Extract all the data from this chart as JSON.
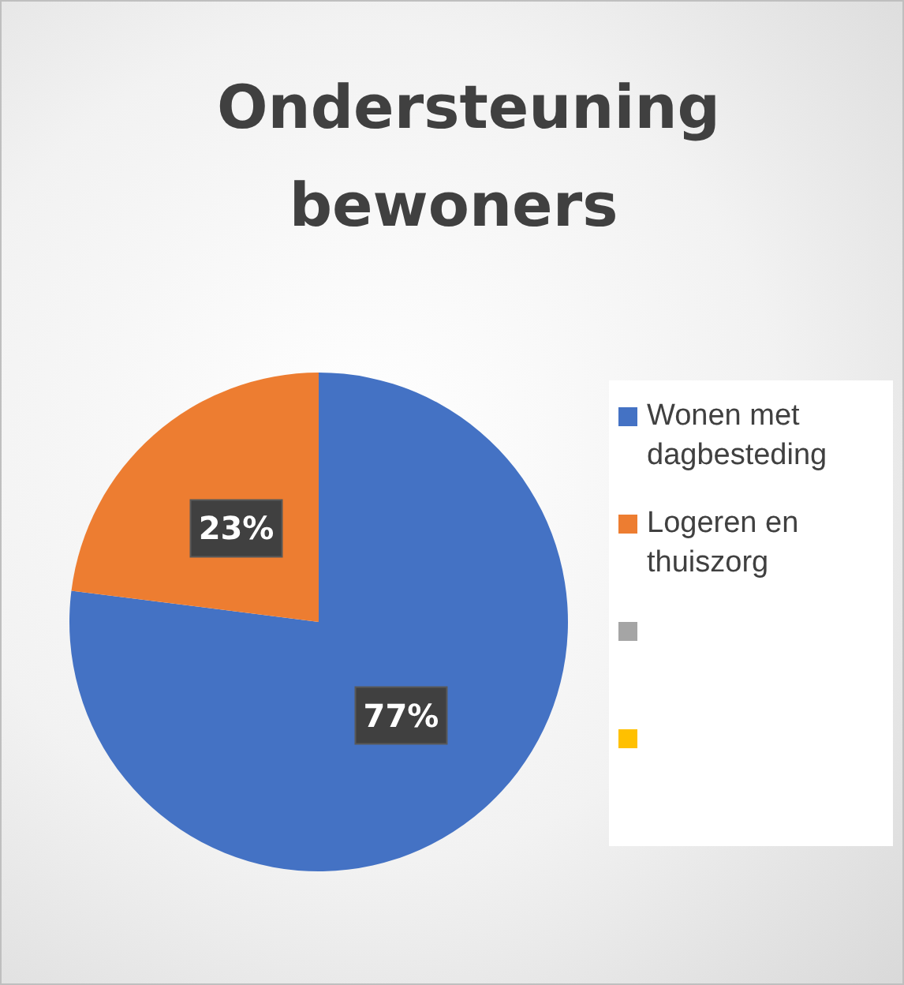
{
  "chart_data": {
    "type": "pie",
    "title": "Ondersteuning bewoners",
    "categories": [
      "Wonen met dagbesteding",
      "Logeren en thuiszorg",
      null,
      null
    ],
    "values": [
      77,
      23,
      0,
      0
    ],
    "colors": [
      "#4472c4",
      "#ed7d31",
      "#a5a5a5",
      "#ffc000"
    ],
    "value_labels": [
      "77%",
      "23%",
      null,
      null
    ],
    "legend": "right"
  }
}
